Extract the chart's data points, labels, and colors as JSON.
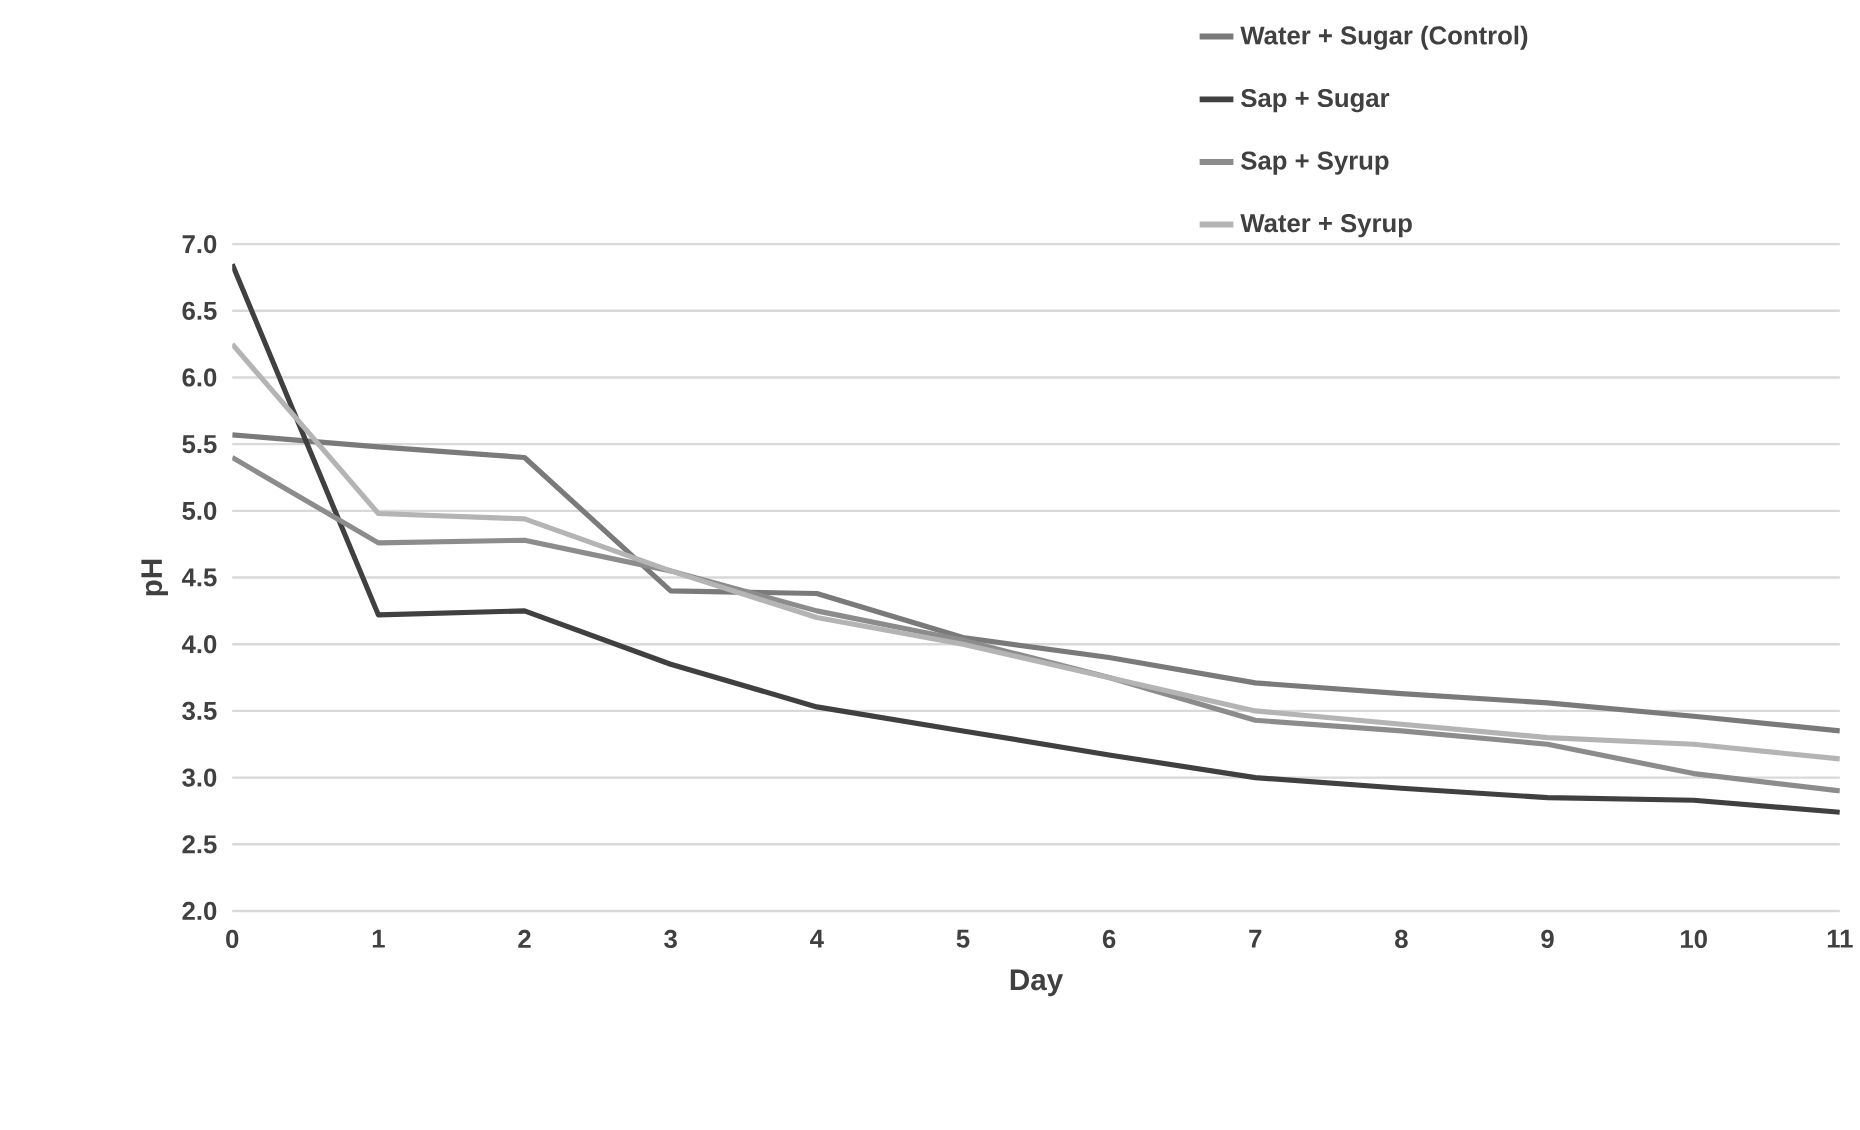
{
  "chart_data": {
    "type": "line",
    "xlabel": "Day",
    "ylabel": "pH",
    "categories": [
      "0",
      "1",
      "2",
      "3",
      "4",
      "5",
      "6",
      "7",
      "8",
      "9",
      "10",
      "11"
    ],
    "series": [
      {
        "name": "Water + Sugar (Control)",
        "color": "#7a7a7a",
        "values": [
          5.57,
          5.48,
          5.4,
          4.4,
          4.38,
          4.05,
          3.9,
          3.71,
          3.63,
          3.56,
          3.46,
          3.35
        ]
      },
      {
        "name": "Sap + Sugar",
        "color": "#404040",
        "values": [
          6.85,
          4.22,
          4.25,
          3.85,
          3.53,
          3.35,
          3.17,
          3.0,
          2.92,
          2.85,
          2.83,
          2.74
        ]
      },
      {
        "name": "Sap + Syrup",
        "color": "#8c8c8c",
        "values": [
          5.4,
          4.76,
          4.78,
          4.55,
          4.25,
          4.03,
          3.75,
          3.43,
          3.35,
          3.25,
          3.03,
          2.9
        ]
      },
      {
        "name": "Water + Syrup",
        "color": "#b4b4b4",
        "values": [
          6.25,
          4.98,
          4.94,
          4.55,
          4.2,
          4.0,
          3.75,
          3.5,
          3.4,
          3.3,
          3.25,
          3.14
        ]
      }
    ],
    "ylim": [
      2,
      7
    ],
    "yticks": [
      {
        "value": 2,
        "label": "2.0"
      },
      {
        "value": 2.5,
        "label": "2.5"
      },
      {
        "value": 3,
        "label": "3.0"
      },
      {
        "value": 3.5,
        "label": "3.5"
      },
      {
        "value": 4,
        "label": "4.0"
      },
      {
        "value": 4.5,
        "label": "4.5"
      },
      {
        "value": 5,
        "label": "5.0"
      },
      {
        "value": 5.5,
        "label": "5.5"
      },
      {
        "value": 6,
        "label": "6.0"
      },
      {
        "value": 6.5,
        "label": "6.5"
      },
      {
        "value": 7,
        "label": "7.0"
      }
    ],
    "grid": "y",
    "legend": "top right",
    "marker": "none",
    "line_style": "solid"
  }
}
